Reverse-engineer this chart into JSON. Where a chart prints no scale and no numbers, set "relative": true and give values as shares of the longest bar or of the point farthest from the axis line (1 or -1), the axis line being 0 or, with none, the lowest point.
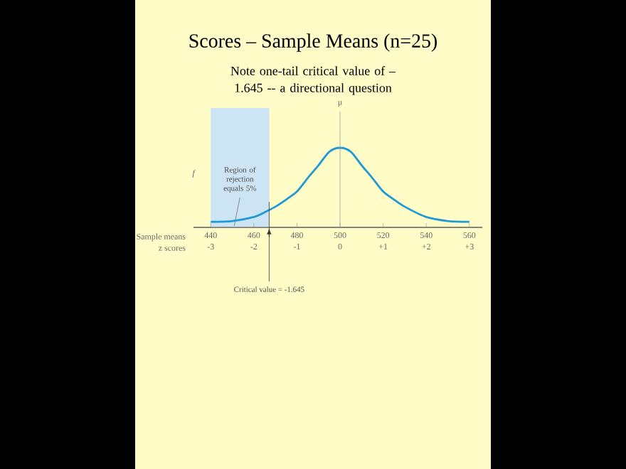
{
  "chart_data": {
    "type": "line",
    "title": "Scores – Sample Means (n=25)",
    "subtitle": "Note one-tail critical value of –1.645 -- a directional question",
    "xlabel": "Sample means",
    "x2label": "z scores",
    "ylabel": "f",
    "relative": true,
    "xlim": [
      432,
      566
    ],
    "xticks": [
      440,
      460,
      480,
      500,
      520,
      540,
      560
    ],
    "x2lim": [
      -3.4,
      3.3
    ],
    "x2ticks": [
      -3,
      -2,
      -1,
      0,
      {
        "value": 1,
        "label": "+1"
      },
      {
        "value": 2,
        "label": "+2"
      },
      {
        "value": 3,
        "label": "+3"
      }
    ],
    "series": [
      {
        "color": "#1e9ad6",
        "x": [
          440,
          450,
          460,
          465,
          470,
          475,
          480,
          485,
          490,
          495,
          500,
          505,
          510,
          515,
          520,
          525,
          530,
          540,
          550,
          560
        ],
        "values": [
          0.07,
          0.08,
          0.13,
          0.19,
          0.26,
          0.35,
          0.45,
          0.62,
          0.78,
          0.95,
          1,
          0.95,
          0.78,
          0.62,
          0.45,
          0.35,
          0.26,
          0.13,
          0.08,
          0.07
        ]
      }
    ],
    "bands": [
      {
        "axis": "x2",
        "from": -3,
        "to": -1.645,
        "label": "Region of rejection equals 5%",
        "color": "#cce4f4"
      }
    ],
    "ref_lines": [
      {
        "axis": "x",
        "value": 500,
        "label": "μ",
        "color": "#9a9a9a"
      },
      {
        "axis": "x2",
        "value": -1.645,
        "label": "Critical value = -1.645",
        "color": "#333333"
      }
    ]
  }
}
